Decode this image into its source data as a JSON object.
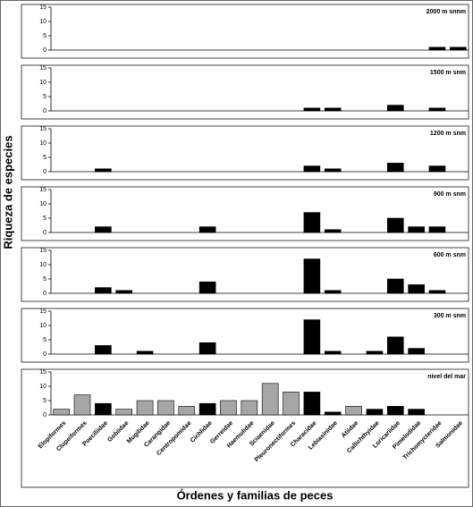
{
  "ylabel": "Riqueza de especies",
  "xlabel": "Órdenes y familias de peces",
  "categories": [
    "Elopiformes",
    "Clupeiformes",
    "Poeciliidae",
    "Gobiidae",
    "Mugilidae",
    "Carangidae",
    "Centropomidae",
    "Cichlidae",
    "Gerreidae",
    "Haemulidae",
    "Sciaenidae",
    "Pleuronectiformes",
    "Characidae",
    "Lebiasinidae",
    "Atiidae",
    "Callichthyidae",
    "Loricariidae",
    "Pimelodidae",
    "Trichomycteridae",
    "Salmonidae"
  ],
  "chart_data": [
    {
      "type": "bar",
      "label": "2000 m snnm",
      "color": "#000000",
      "ylim": [
        0,
        15
      ],
      "yticks": [
        0,
        5,
        10,
        15
      ],
      "values": [
        0,
        0,
        0,
        0,
        0,
        0,
        0,
        0,
        0,
        0,
        0,
        0,
        0,
        0,
        0,
        0,
        0,
        0,
        1,
        1
      ]
    },
    {
      "type": "bar",
      "label": "1500 m snm",
      "color": "#000000",
      "ylim": [
        0,
        15
      ],
      "yticks": [
        0,
        5,
        10,
        15
      ],
      "values": [
        0,
        0,
        0,
        0,
        0,
        0,
        0,
        0,
        0,
        0,
        0,
        0,
        1,
        1,
        0,
        0,
        2,
        0,
        1,
        0
      ]
    },
    {
      "type": "bar",
      "label": "1200 m snm",
      "color": "#000000",
      "ylim": [
        0,
        15
      ],
      "yticks": [
        0,
        5,
        10,
        15
      ],
      "values": [
        0,
        0,
        1,
        0,
        0,
        0,
        0,
        0,
        0,
        0,
        0,
        0,
        2,
        1,
        0,
        0,
        3,
        0,
        2,
        0
      ]
    },
    {
      "type": "bar",
      "label": "900 m snm",
      "color": "#000000",
      "ylim": [
        0,
        15
      ],
      "yticks": [
        0,
        5,
        10,
        15
      ],
      "values": [
        0,
        0,
        2,
        0,
        0,
        0,
        0,
        2,
        0,
        0,
        0,
        0,
        7,
        1,
        0,
        0,
        5,
        2,
        2,
        0
      ]
    },
    {
      "type": "bar",
      "label": "600 m snm",
      "color": "#000000",
      "ylim": [
        0,
        15
      ],
      "yticks": [
        0,
        5,
        10,
        15
      ],
      "values": [
        0,
        0,
        2,
        1,
        0,
        0,
        0,
        4,
        0,
        0,
        0,
        0,
        12,
        1,
        0,
        0,
        5,
        3,
        1,
        0
      ]
    },
    {
      "type": "bar",
      "label": "300 m snm",
      "color": "#000000",
      "ylim": [
        0,
        15
      ],
      "yticks": [
        0,
        5,
        10,
        15
      ],
      "values": [
        0,
        0,
        3,
        0,
        1,
        0,
        0,
        4,
        0,
        0,
        0,
        0,
        12,
        1,
        0,
        1,
        6,
        2,
        0,
        0
      ]
    },
    {
      "type": "bar",
      "label": "nivel del mar",
      "ylim": [
        0,
        15
      ],
      "yticks": [
        0,
        5,
        10,
        15
      ],
      "values": [
        2,
        7,
        4,
        2,
        5,
        5,
        3,
        4,
        5,
        5,
        11,
        8,
        8,
        1,
        3,
        2,
        3,
        2,
        0,
        0
      ],
      "colors": [
        "#a6a6a6",
        "#a6a6a6",
        "#000000",
        "#a6a6a6",
        "#a6a6a6",
        "#a6a6a6",
        "#a6a6a6",
        "#000000",
        "#a6a6a6",
        "#a6a6a6",
        "#a6a6a6",
        "#a6a6a6",
        "#000000",
        "#000000",
        "#a6a6a6",
        "#000000",
        "#000000",
        "#000000",
        "#000000",
        "#000000"
      ]
    }
  ]
}
